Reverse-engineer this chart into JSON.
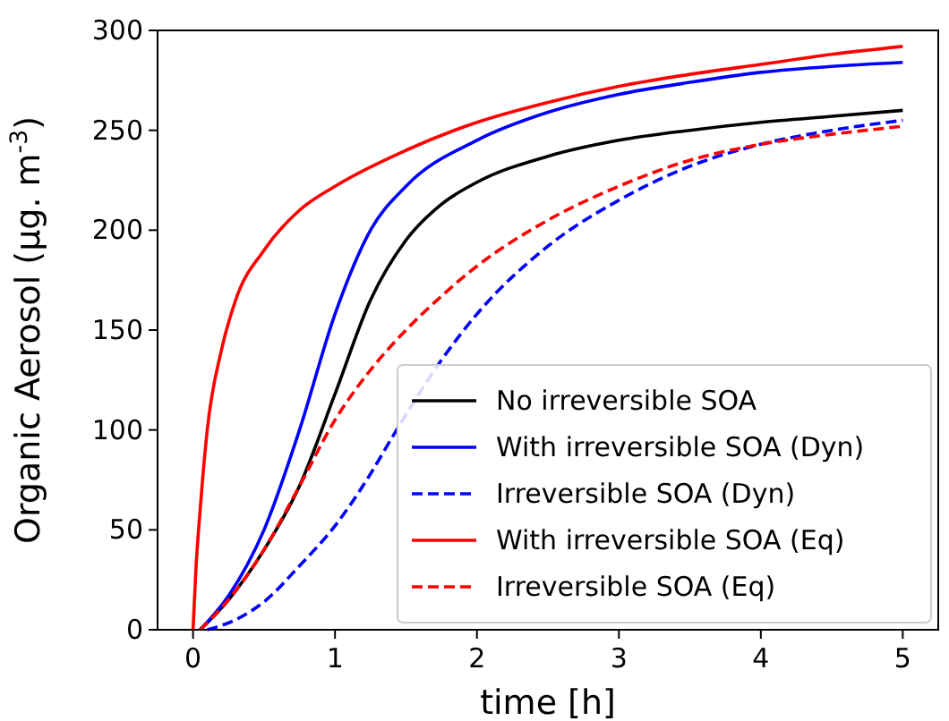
{
  "chart_data": {
    "type": "line",
    "xlabel": "time [h]",
    "ylabel": "Organic Aerosol (μg. m$^{-3}$)",
    "xlim": [
      -0.25,
      5.25
    ],
    "xticks": [
      0,
      1,
      2,
      3,
      4,
      5
    ],
    "ylim": [
      0,
      300
    ],
    "yticks": [
      0,
      50,
      100,
      150,
      200,
      250,
      300
    ],
    "legend": "bottom right",
    "grid": false,
    "series": [
      {
        "name": "No irreversible SOA",
        "color": "#000000",
        "line_style": "solid",
        "x": [
          0.05,
          0.25,
          0.5,
          0.75,
          1,
          1.25,
          1.5,
          1.75,
          2,
          2.5,
          3,
          3.5,
          4,
          4.5,
          5
        ],
        "values": [
          0,
          15,
          40,
          72,
          118,
          165,
          195,
          213,
          224,
          237,
          245,
          250,
          254,
          257,
          260
        ]
      },
      {
        "name": "With irreversible SOA (Dyn)",
        "color": "#0000ff",
        "line_style": "solid",
        "x": [
          0.05,
          0.25,
          0.5,
          0.75,
          1,
          1.25,
          1.5,
          2,
          2.5,
          3,
          3.5,
          4,
          4.5,
          5
        ],
        "values": [
          0,
          17,
          50,
          100,
          158,
          200,
          222,
          245,
          259,
          268,
          274,
          279,
          282,
          284
        ]
      },
      {
        "name": "Irreversible SOA (Dyn)",
        "color": "#0000ff",
        "line_style": "dashed",
        "x": [
          0.1,
          0.3,
          0.5,
          0.75,
          1,
          1.25,
          1.4,
          1.75,
          2,
          2.5,
          3,
          3.5,
          4,
          4.5,
          5
        ],
        "values": [
          0,
          5,
          14,
          32,
          52,
          78,
          96,
          135,
          158,
          192,
          215,
          232,
          243,
          250,
          255
        ]
      },
      {
        "name": "With irreversible SOA (Eq)",
        "color": "#ff0000",
        "line_style": "solid",
        "x": [
          0,
          0.02,
          0.05,
          0.1,
          0.2,
          0.3,
          0.5,
          0.75,
          1,
          1.5,
          2,
          2.5,
          3,
          3.5,
          4,
          4.5,
          5
        ],
        "values": [
          0,
          30,
          60,
          100,
          140,
          165,
          190,
          210,
          222,
          240,
          254,
          264,
          272,
          278,
          283,
          288,
          292
        ]
      },
      {
        "name": "Irreversible SOA (Eq)",
        "color": "#ff0000",
        "line_style": "dashed",
        "x": [
          0.05,
          0.25,
          0.5,
          0.75,
          1,
          1.25,
          1.5,
          1.75,
          2,
          2.5,
          3,
          3.5,
          4,
          4.5,
          5
        ],
        "values": [
          0,
          15,
          40,
          72,
          105,
          130,
          150,
          167,
          182,
          205,
          222,
          235,
          243,
          248,
          252
        ]
      }
    ]
  }
}
